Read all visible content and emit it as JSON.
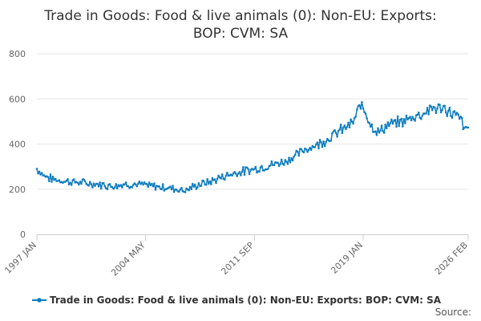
{
  "chart_data": {
    "type": "line",
    "title": "Trade in Goods: Food & live animals (0): Non-EU: Exports: BOP: CVM: SA",
    "title_lines": [
      "Trade in Goods: Food & live animals (0): Non-EU: Exports:",
      "BOP: CVM: SA"
    ],
    "xlabel": "",
    "ylabel": "",
    "x_range": [
      "1997 JAN",
      "2026 FEB"
    ],
    "x_tick_labels": [
      "1997 JAN",
      "2004 MAY",
      "2011 SEP",
      "2019 JAN",
      "2026 FEB"
    ],
    "x_tick_month_index": [
      0,
      88,
      176,
      264,
      349
    ],
    "ylim": [
      0,
      800
    ],
    "y_ticks": [
      0,
      200,
      400,
      600,
      800
    ],
    "y_tick_labels": [
      "0",
      "200",
      "400",
      "600",
      "800"
    ],
    "grid": true,
    "legend_position": "bottom",
    "series": [
      {
        "name": "Trade in Goods: Food & live animals (0): Non-EU: Exports: BOP: CVM: SA",
        "color": "#0f7dc0",
        "anchor_month_index": [
          0,
          6,
          12,
          20,
          30,
          48,
          60,
          72,
          84,
          96,
          108,
          120,
          132,
          140,
          150,
          160,
          170,
          180,
          190,
          200,
          210,
          218,
          226,
          234,
          240,
          248,
          256,
          262,
          266,
          270,
          276,
          282,
          288,
          296,
          304,
          312,
          320,
          330,
          338,
          344,
          346,
          349
        ],
        "anchor_values": [
          290,
          260,
          245,
          238,
          232,
          222,
          215,
          222,
          220,
          212,
          205,
          195,
          222,
          232,
          255,
          272,
          282,
          295,
          308,
          322,
          350,
          380,
          395,
          420,
          440,
          468,
          495,
          575,
          545,
          490,
          450,
          478,
          490,
          500,
          520,
          535,
          560,
          555,
          530,
          505,
          455,
          480
        ],
        "noise_amplitude": 14
      }
    ]
  },
  "source_label": "Source:"
}
